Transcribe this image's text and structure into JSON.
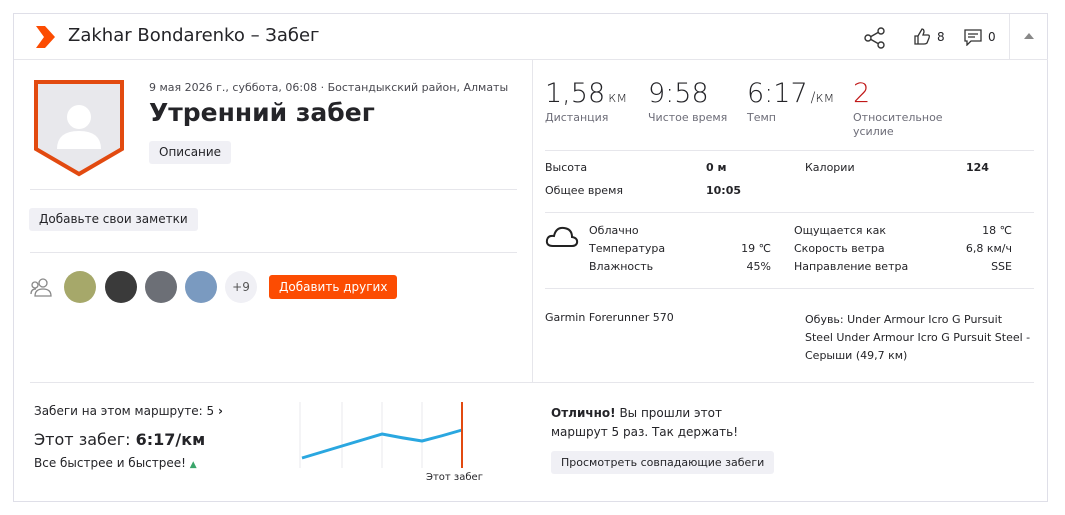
{
  "header": {
    "title": "Zakhar Bondarenko – Забег",
    "likes": "8",
    "comments": "0"
  },
  "activity": {
    "meta": "9 мая 2026 г., суббота, 06:08 · Бостандыкский район, Алматы",
    "name": "Утренний забег",
    "description_button": "Описание",
    "notes_button": "Добавьте свои заметки"
  },
  "athletes": {
    "more": "+9",
    "add_button": "Добавить других"
  },
  "stats": [
    {
      "value": "1,58",
      "unit": "км",
      "label": "Дистанция"
    },
    {
      "value": "9:58",
      "label": "Чистое время"
    },
    {
      "value": "6:17",
      "unit": "/км",
      "label": "Темп"
    },
    {
      "value": "2",
      "label": "Относительное усилие"
    }
  ],
  "details": [
    [
      "Высота",
      "0 м",
      "Калории",
      "124"
    ],
    [
      "Общее время",
      "10:05"
    ]
  ],
  "weather": {
    "condition": "Облачно",
    "left": [
      [
        "Температура",
        "19 ℃"
      ],
      [
        "Влажность",
        "45%"
      ]
    ],
    "right": [
      [
        "Ощущается как",
        "18 ℃"
      ],
      [
        "Скорость ветра",
        "6,8 км/ч"
      ],
      [
        "Направление ветра",
        "SSE"
      ]
    ]
  },
  "device": "Garmin Forerunner 570",
  "shoes": "Обувь: Under Armour Icro G Pursuit Steel Under Armour Icro G Pursuit Steel  - Серыши (49,7 км)",
  "segment": {
    "route_runs": "Забеги на этом маршруте: 5",
    "this_run_label": "Этот забег:",
    "this_run_pace": "6:17/км",
    "trend": "Все быстрее и быстрее!",
    "chart_marker": "Этот забег",
    "message_bold": "Отлично!",
    "message": "Вы прошли этот маршрут 5 раз. Так держать!",
    "button": "Просмотреть совпадающие забеги"
  }
}
